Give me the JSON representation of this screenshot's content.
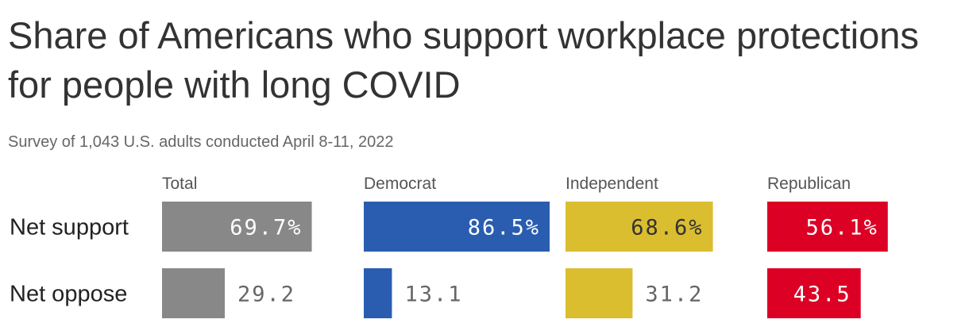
{
  "title": "Share of Americans who support workplace protections for people with long COVID",
  "subtitle": "Survey of 1,043 U.S. adults conducted April 8-11, 2022",
  "chart_data": {
    "type": "bar",
    "title": "Share of Americans who support workplace protections for people with long COVID",
    "subtitle": "Survey of 1,043 U.S. adults conducted April 8-11, 2022",
    "orientation": "horizontal",
    "layout": "small-multiples",
    "categories": [
      "Net support",
      "Net oppose"
    ],
    "series": [
      {
        "name": "Total",
        "values": [
          69.7,
          29.2
        ],
        "labels": [
          "69.7%",
          "29.2"
        ],
        "color": "#888888"
      },
      {
        "name": "Democrat",
        "values": [
          86.5,
          13.1
        ],
        "labels": [
          "86.5%",
          "13.1"
        ],
        "color": "#2a5db0"
      },
      {
        "name": "Independent",
        "values": [
          68.6,
          31.2
        ],
        "labels": [
          "68.6%",
          "31.2"
        ],
        "color": "#dbbd30"
      },
      {
        "name": "Republican",
        "values": [
          56.1,
          43.5
        ],
        "labels": [
          "56.1%",
          "43.5"
        ],
        "color": "#dc0024"
      }
    ],
    "xlim": [
      0,
      86.5
    ],
    "colors": {
      "label_inside": "#ffffff",
      "label_inside_on_light": "#333333",
      "label_outside": "#666666"
    }
  }
}
